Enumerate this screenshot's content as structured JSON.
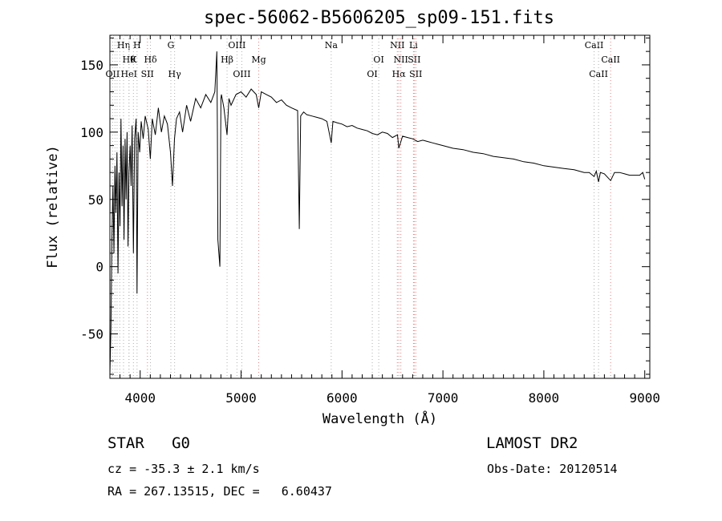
{
  "chart_data": {
    "type": "line",
    "title": "spec-56062-B5606205_sp09-151.fits",
    "xlabel": "Wavelength (Å)",
    "ylabel": "Flux (relative)",
    "xlim": [
      3700,
      9050
    ],
    "ylim": [
      -83,
      172
    ],
    "xticks": [
      4000,
      5000,
      6000,
      7000,
      8000,
      9000
    ],
    "yticks": [
      -50,
      0,
      50,
      100,
      150
    ],
    "grid": false,
    "series": [
      {
        "color": "#000000",
        "x": [
          3700,
          3710,
          3720,
          3730,
          3740,
          3750,
          3760,
          3770,
          3780,
          3790,
          3800,
          3810,
          3820,
          3830,
          3840,
          3850,
          3860,
          3870,
          3880,
          3889,
          3900,
          3910,
          3920,
          3933,
          3945,
          3960,
          3969,
          3980,
          3995,
          4010,
          4030,
          4050,
          4080,
          4101,
          4120,
          4150,
          4180,
          4210,
          4240,
          4270,
          4300,
          4320,
          4340,
          4360,
          4390,
          4420,
          4460,
          4500,
          4550,
          4600,
          4650,
          4700,
          4740,
          4760,
          4765,
          4770,
          4790,
          4800,
          4805,
          4830,
          4861,
          4880,
          4900,
          4950,
          5000,
          5050,
          5100,
          5150,
          5175,
          5200,
          5250,
          5300,
          5350,
          5400,
          5450,
          5500,
          5560,
          5577,
          5590,
          5620,
          5650,
          5700,
          5750,
          5800,
          5850,
          5893,
          5910,
          5950,
          6000,
          6050,
          6100,
          6150,
          6200,
          6250,
          6300,
          6350,
          6400,
          6450,
          6500,
          6550,
          6563,
          6600,
          6650,
          6700,
          6750,
          6800,
          6850,
          6900,
          6950,
          7000,
          7100,
          7200,
          7300,
          7400,
          7500,
          7600,
          7700,
          7800,
          7900,
          8000,
          8100,
          8200,
          8300,
          8400,
          8450,
          8498,
          8520,
          8542,
          8560,
          8600,
          8662,
          8700,
          8750,
          8800,
          8850,
          8900,
          8950,
          8980,
          9000
        ],
        "values": [
          -80,
          -45,
          20,
          60,
          10,
          75,
          40,
          85,
          -5,
          70,
          30,
          110,
          45,
          90,
          20,
          95,
          50,
          100,
          15,
          70,
          90,
          60,
          105,
          10,
          95,
          110,
          -20,
          100,
          85,
          108,
          95,
          112,
          102,
          80,
          110,
          98,
          118,
          100,
          112,
          106,
          85,
          60,
          95,
          110,
          115,
          100,
          120,
          108,
          125,
          118,
          128,
          122,
          130,
          160,
          100,
          20,
          0,
          125,
          128,
          118,
          98,
          125,
          120,
          128,
          130,
          126,
          132,
          128,
          118,
          130,
          128,
          126,
          122,
          124,
          120,
          118,
          116,
          28,
          112,
          115,
          113,
          112,
          111,
          110,
          108,
          92,
          108,
          107,
          106,
          104,
          105,
          103,
          102,
          101,
          99,
          98,
          100,
          99,
          96,
          98,
          88,
          97,
          96,
          95,
          93,
          94,
          93,
          92,
          91,
          90,
          88,
          87,
          85,
          84,
          82,
          81,
          80,
          78,
          77,
          75,
          74,
          73,
          72,
          70,
          70,
          67,
          71,
          63,
          70,
          69,
          64,
          70,
          70,
          69,
          68,
          68,
          68,
          70,
          65
        ]
      }
    ],
    "line_markers": [
      {
        "x": 3727,
        "color": "#b0b0b0",
        "label": "OII",
        "row": 3
      },
      {
        "x": 3750,
        "color": "#b0b0b0",
        "label": "",
        "row": 0
      },
      {
        "x": 3771,
        "color": "#b0b0b0",
        "label": "",
        "row": 0
      },
      {
        "x": 3798,
        "color": "#b0b0b0",
        "label": "",
        "row": 0
      },
      {
        "x": 3835,
        "color": "#b0b0b0",
        "label": "Hη",
        "row": 1
      },
      {
        "x": 3889,
        "color": "#b0b0b0",
        "label": "Hθ",
        "row": 2
      },
      {
        "x": 3889,
        "color": "#b0b0b0",
        "label": "HeI",
        "row": 3
      },
      {
        "x": 3933,
        "color": "#b0b0b0",
        "label": "K",
        "row": 2
      },
      {
        "x": 3969,
        "color": "#b0b0b0",
        "label": "H",
        "row": 1
      },
      {
        "x": 4072,
        "color": "#e08080",
        "label": "SII",
        "row": 3
      },
      {
        "x": 4102,
        "color": "#b0b0b0",
        "label": "Hδ",
        "row": 2
      },
      {
        "x": 4304,
        "color": "#b0b0b0",
        "label": "G",
        "row": 1
      },
      {
        "x": 4341,
        "color": "#b0b0b0",
        "label": "Hγ",
        "row": 3
      },
      {
        "x": 4861,
        "color": "#b0b0b0",
        "label": "Hβ",
        "row": 2
      },
      {
        "x": 4959,
        "color": "#b0b0b0",
        "label": "OIII",
        "row": 1
      },
      {
        "x": 5007,
        "color": "#b0b0b0",
        "label": "OIII",
        "row": 3
      },
      {
        "x": 5175,
        "color": "#e08080",
        "label": "Mg",
        "row": 2
      },
      {
        "x": 5893,
        "color": "#b0b0b0",
        "label": "Na",
        "row": 1
      },
      {
        "x": 6300,
        "color": "#b0b0b0",
        "label": "OI",
        "row": 3
      },
      {
        "x": 6364,
        "color": "#b0b0b0",
        "label": "OI",
        "row": 2
      },
      {
        "x": 6548,
        "color": "#e08080",
        "label": "NII",
        "row": 1
      },
      {
        "x": 6563,
        "color": "#e08080",
        "label": "Hα",
        "row": 3
      },
      {
        "x": 6583,
        "color": "#e08080",
        "label": "NII",
        "row": 2
      },
      {
        "x": 6708,
        "color": "#e08080",
        "label": "Li",
        "row": 1
      },
      {
        "x": 6716,
        "color": "#e08080",
        "label": "SII",
        "row": 2
      },
      {
        "x": 6731,
        "color": "#e08080",
        "label": "SII",
        "row": 3
      },
      {
        "x": 8498,
        "color": "#b0b0b0",
        "label": "CaII",
        "row": 1
      },
      {
        "x": 8542,
        "color": "#b0b0b0",
        "label": "CaII",
        "row": 3
      },
      {
        "x": 8662,
        "color": "#e08080",
        "label": "CaII",
        "row": 2
      }
    ]
  },
  "info": {
    "classification": "STAR   G0",
    "survey": "LAMOST DR2",
    "redshift": "cz = -35.3 ± 2.1 km/s",
    "obs_date": "Obs-Date: 20120514",
    "coords": "RA = 267.13515, DEC =   6.60437"
  }
}
